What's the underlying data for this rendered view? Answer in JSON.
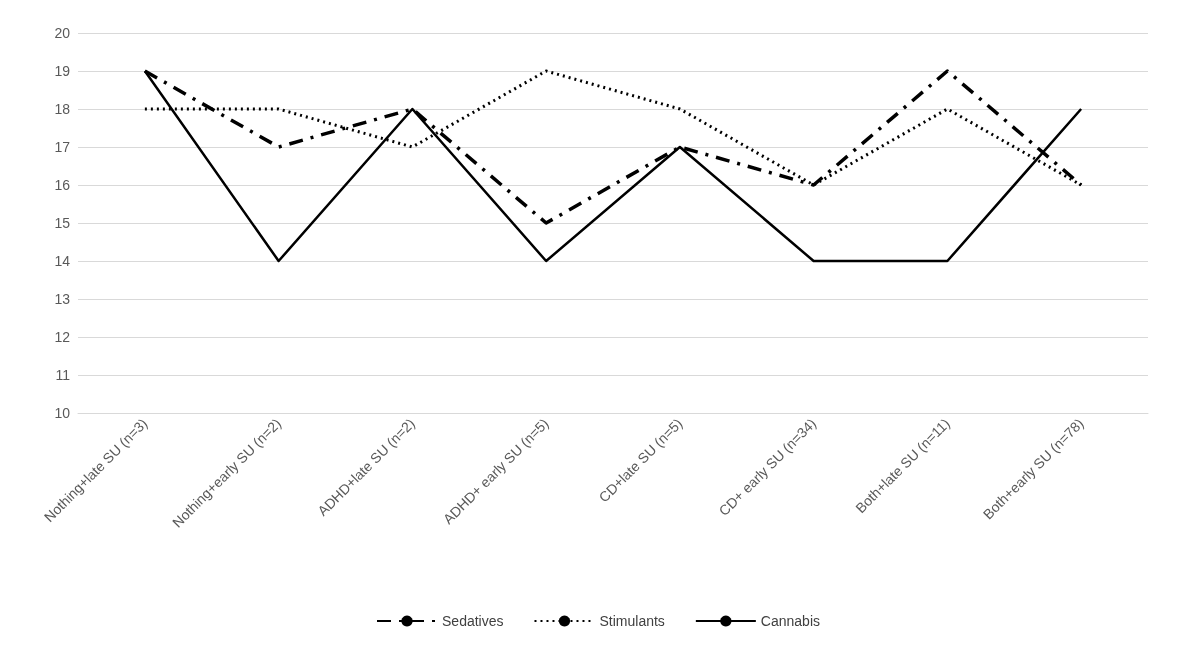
{
  "chart_data": {
    "type": "line",
    "categories": [
      "Nothing+late SU (n=3)",
      "Nothing+early SU (n=2)",
      "ADHD+late SU (n=2)",
      "ADHD+ early SU (n=5)",
      "CD+late SU (n=5)",
      "CD+ early SU (n=34)",
      "Both+late SU (n=11)",
      "Both+early SU (n=78)"
    ],
    "series": [
      {
        "name": "Sedatives",
        "color": "#000000",
        "line_style": "dashed",
        "values": [
          19,
          17,
          18,
          15,
          17,
          16,
          19,
          16
        ]
      },
      {
        "name": "Stimulants",
        "color": "#000000",
        "line_style": "dotted",
        "values": [
          18,
          18,
          17,
          19,
          18,
          16,
          18,
          16
        ]
      },
      {
        "name": "Cannabis",
        "color": "#000000",
        "line_style": "solid",
        "values": [
          19,
          14,
          18,
          14,
          17,
          14,
          14,
          18
        ]
      }
    ],
    "ylim": [
      10,
      20
    ],
    "yticks": [
      10,
      11,
      12,
      13,
      14,
      15,
      16,
      17,
      18,
      19,
      20
    ],
    "grid": "y",
    "legend": "bottom",
    "marker": "none"
  }
}
